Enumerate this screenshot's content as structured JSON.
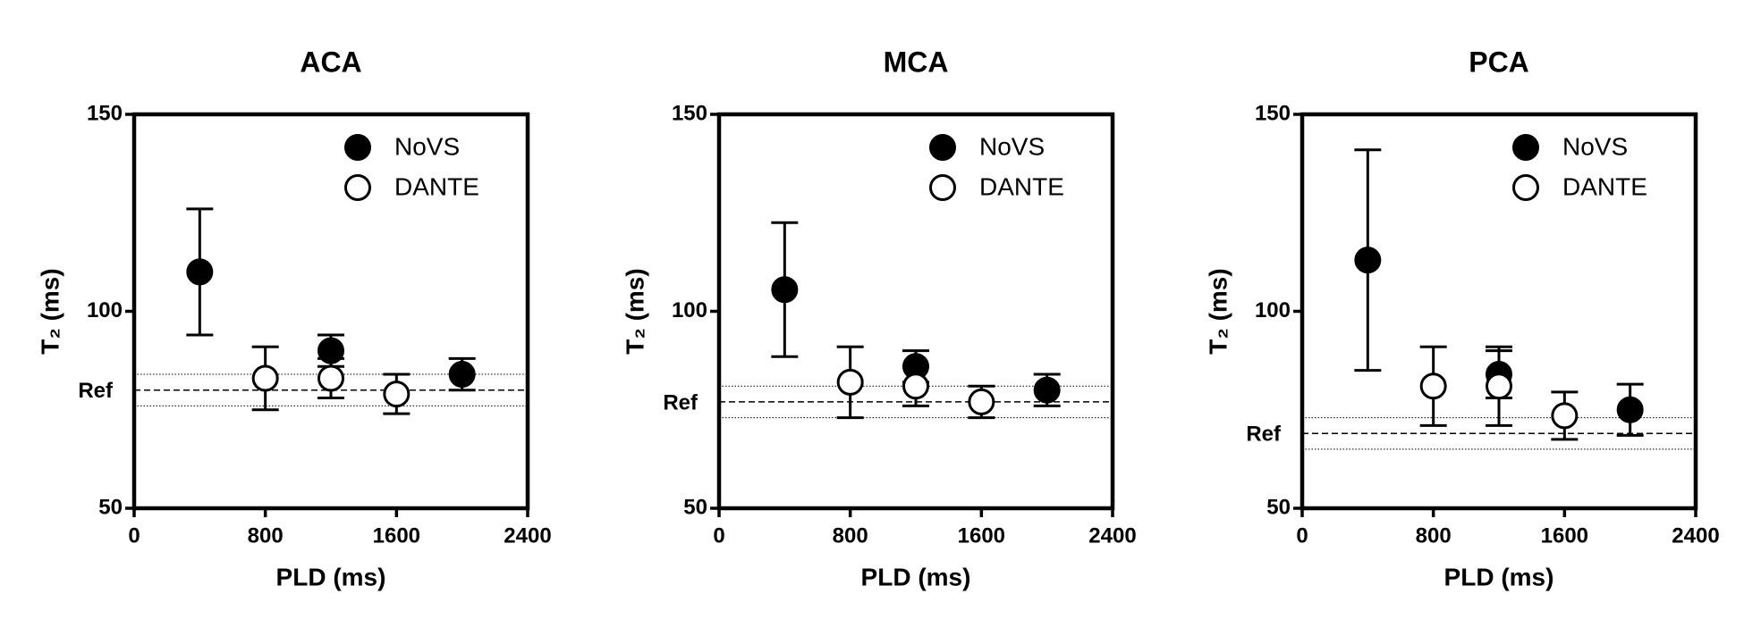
{
  "chart_data": [
    {
      "type": "scatter",
      "title": "ACA",
      "x_label": "PLD (ms)",
      "y_label": "T₂ (ms)",
      "xlim": [
        0,
        2400
      ],
      "xticks": [
        0,
        800,
        1600,
        2400
      ],
      "ylim": [
        50,
        150
      ],
      "yticks": [
        50,
        100,
        150
      ],
      "legend": "upper right",
      "grid": false,
      "reference": {
        "label": "Ref",
        "value": 80,
        "band": 4
      },
      "series": [
        {
          "name": "NoVS",
          "color": "#000000",
          "marker_fill": "#000000",
          "x": [
            400,
            1200,
            2000
          ],
          "values": [
            110,
            90,
            84
          ],
          "errors": [
            16,
            4,
            4
          ]
        },
        {
          "name": "DANTE",
          "color": "#000000",
          "marker_fill": "#ffffff",
          "x": [
            800,
            1200,
            1600
          ],
          "values": [
            83,
            83,
            79
          ],
          "errors": [
            8,
            5,
            5
          ]
        }
      ]
    },
    {
      "type": "scatter",
      "title": "MCA",
      "x_label": "PLD (ms)",
      "y_label": "T₂ (ms)",
      "xlim": [
        0,
        2400
      ],
      "xticks": [
        0,
        800,
        1600,
        2400
      ],
      "ylim": [
        50,
        150
      ],
      "yticks": [
        50,
        100,
        150
      ],
      "legend": "upper right",
      "grid": false,
      "reference": {
        "label": "Ref",
        "value": 77,
        "band": 4
      },
      "series": [
        {
          "name": "NoVS",
          "color": "#000000",
          "marker_fill": "#000000",
          "x": [
            400,
            1200,
            2000
          ],
          "values": [
            105.5,
            86,
            80
          ],
          "errors": [
            17,
            4,
            4
          ]
        },
        {
          "name": "DANTE",
          "color": "#000000",
          "marker_fill": "#ffffff",
          "x": [
            800,
            1200,
            1600
          ],
          "values": [
            82,
            81,
            77
          ],
          "errors": [
            9,
            5,
            4
          ]
        }
      ]
    },
    {
      "type": "scatter",
      "title": "PCA",
      "x_label": "PLD (ms)",
      "y_label": "T₂ (ms)",
      "xlim": [
        0,
        2400
      ],
      "xticks": [
        0,
        800,
        1600,
        2400
      ],
      "ylim": [
        50,
        150
      ],
      "yticks": [
        50,
        100,
        150
      ],
      "legend": "upper right",
      "grid": false,
      "reference": {
        "label": "Ref",
        "value": 69,
        "band": 4
      },
      "series": [
        {
          "name": "NoVS",
          "color": "#000000",
          "marker_fill": "#000000",
          "x": [
            400,
            1200,
            2000
          ],
          "values": [
            113,
            84,
            75
          ],
          "errors": [
            28,
            6,
            6.5
          ]
        },
        {
          "name": "DANTE",
          "color": "#000000",
          "marker_fill": "#ffffff",
          "x": [
            800,
            1200,
            1600
          ],
          "values": [
            81,
            81,
            73.5
          ],
          "errors": [
            10,
            10,
            6
          ]
        }
      ]
    }
  ]
}
